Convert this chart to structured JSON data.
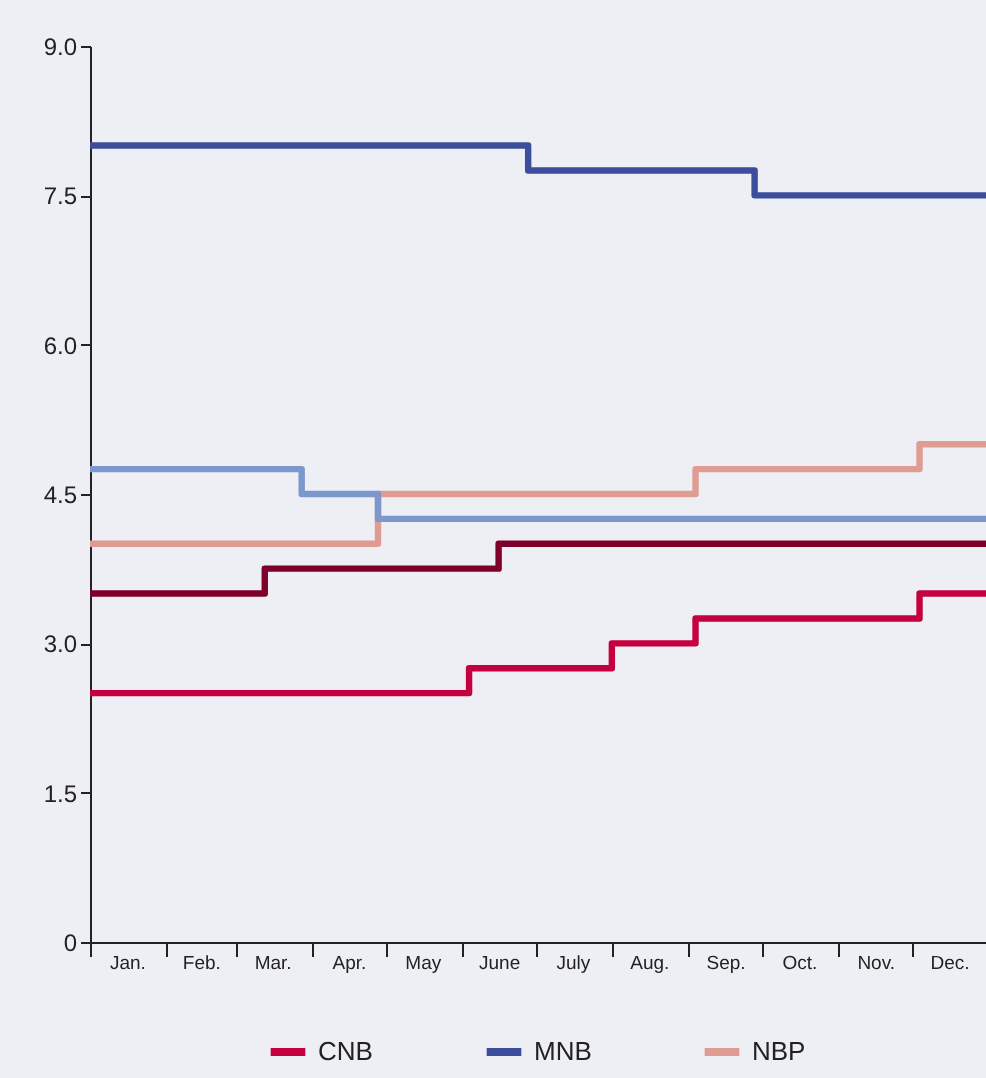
{
  "chart_data": {
    "type": "step",
    "legend": "bottom",
    "grid": false,
    "xlim": [
      "--01-01",
      "--12-31"
    ],
    "xticks": [
      {
        "value": "--01-01",
        "label": null
      },
      {
        "value": "--01-16",
        "label": "Jan."
      },
      {
        "value": "--02-01",
        "label": null
      },
      {
        "value": "--02-15",
        "label": "Feb."
      },
      {
        "value": "--03-01",
        "label": null
      },
      {
        "value": "--03-16",
        "label": "Mar."
      },
      {
        "value": "--04-01",
        "label": null
      },
      {
        "value": "--04-16",
        "label": "Apr."
      },
      {
        "value": "--05-01",
        "label": null
      },
      {
        "value": "--05-16",
        "label": "May"
      },
      {
        "value": "--06-01",
        "label": null
      },
      {
        "value": "--06-16",
        "label": "June"
      },
      {
        "value": "--07-01",
        "label": null
      },
      {
        "value": "--07-16",
        "label": "July"
      },
      {
        "value": "--08-01",
        "label": null
      },
      {
        "value": "--08-16",
        "label": "Aug."
      },
      {
        "value": "--09-01",
        "label": null
      },
      {
        "value": "--09-16",
        "label": "Sep."
      },
      {
        "value": "--10-01",
        "label": null
      },
      {
        "value": "--10-16",
        "label": "Oct."
      },
      {
        "value": "--11-01",
        "label": null
      },
      {
        "value": "--11-16",
        "label": "Nov."
      },
      {
        "value": "--12-01",
        "label": null
      },
      {
        "value": "--12-16",
        "label": "Dec."
      },
      {
        "value": "--12-31",
        "label": null
      }
    ],
    "ylim": [
      0,
      9
    ],
    "yticks": [
      0,
      {
        "value": 1.5,
        "label": "1.5"
      },
      {
        "value": 3,
        "label": "3.0"
      },
      {
        "value": 4.5,
        "label": "4.5"
      },
      {
        "value": 6,
        "label": "6.0"
      },
      {
        "value": 7.5,
        "label": "7.5"
      },
      {
        "value": 9,
        "label": "9.0"
      }
    ],
    "series": [
      {
        "name": "CNB",
        "color": "#c4003f",
        "x": [
          "--01-01",
          "--06-04",
          "--08-01",
          "--09-04",
          "--12-04",
          "--12-31"
        ],
        "values": [
          2.5,
          2.75,
          3.0,
          3.25,
          3.5,
          3.5
        ]
      },
      {
        "name": "MNB",
        "color": "#3b4d9b",
        "x": [
          "--01-01",
          "--06-28",
          "--09-28",
          "--12-31"
        ],
        "values": [
          8.0,
          7.75,
          7.5,
          7.5
        ]
      },
      {
        "name": "NBP",
        "color": "#e09c92",
        "x": [
          "--01-01",
          "--04-28",
          "--09-04",
          "--12-04",
          "--12-31"
        ],
        "values": [
          4.0,
          4.5,
          4.75,
          5.0,
          5.0
        ]
      },
      {
        "color": "#7d0028",
        "x": [
          "--01-01",
          "--03-13",
          "--06-16",
          "--12-31"
        ],
        "values": [
          3.5,
          3.75,
          4.0,
          4.0
        ]
      },
      {
        "color": "#7b97cc",
        "x": [
          "--01-01",
          "--03-28",
          "--04-28",
          "--12-31"
        ],
        "values": [
          4.75,
          4.5,
          4.25,
          4.25
        ]
      }
    ]
  }
}
